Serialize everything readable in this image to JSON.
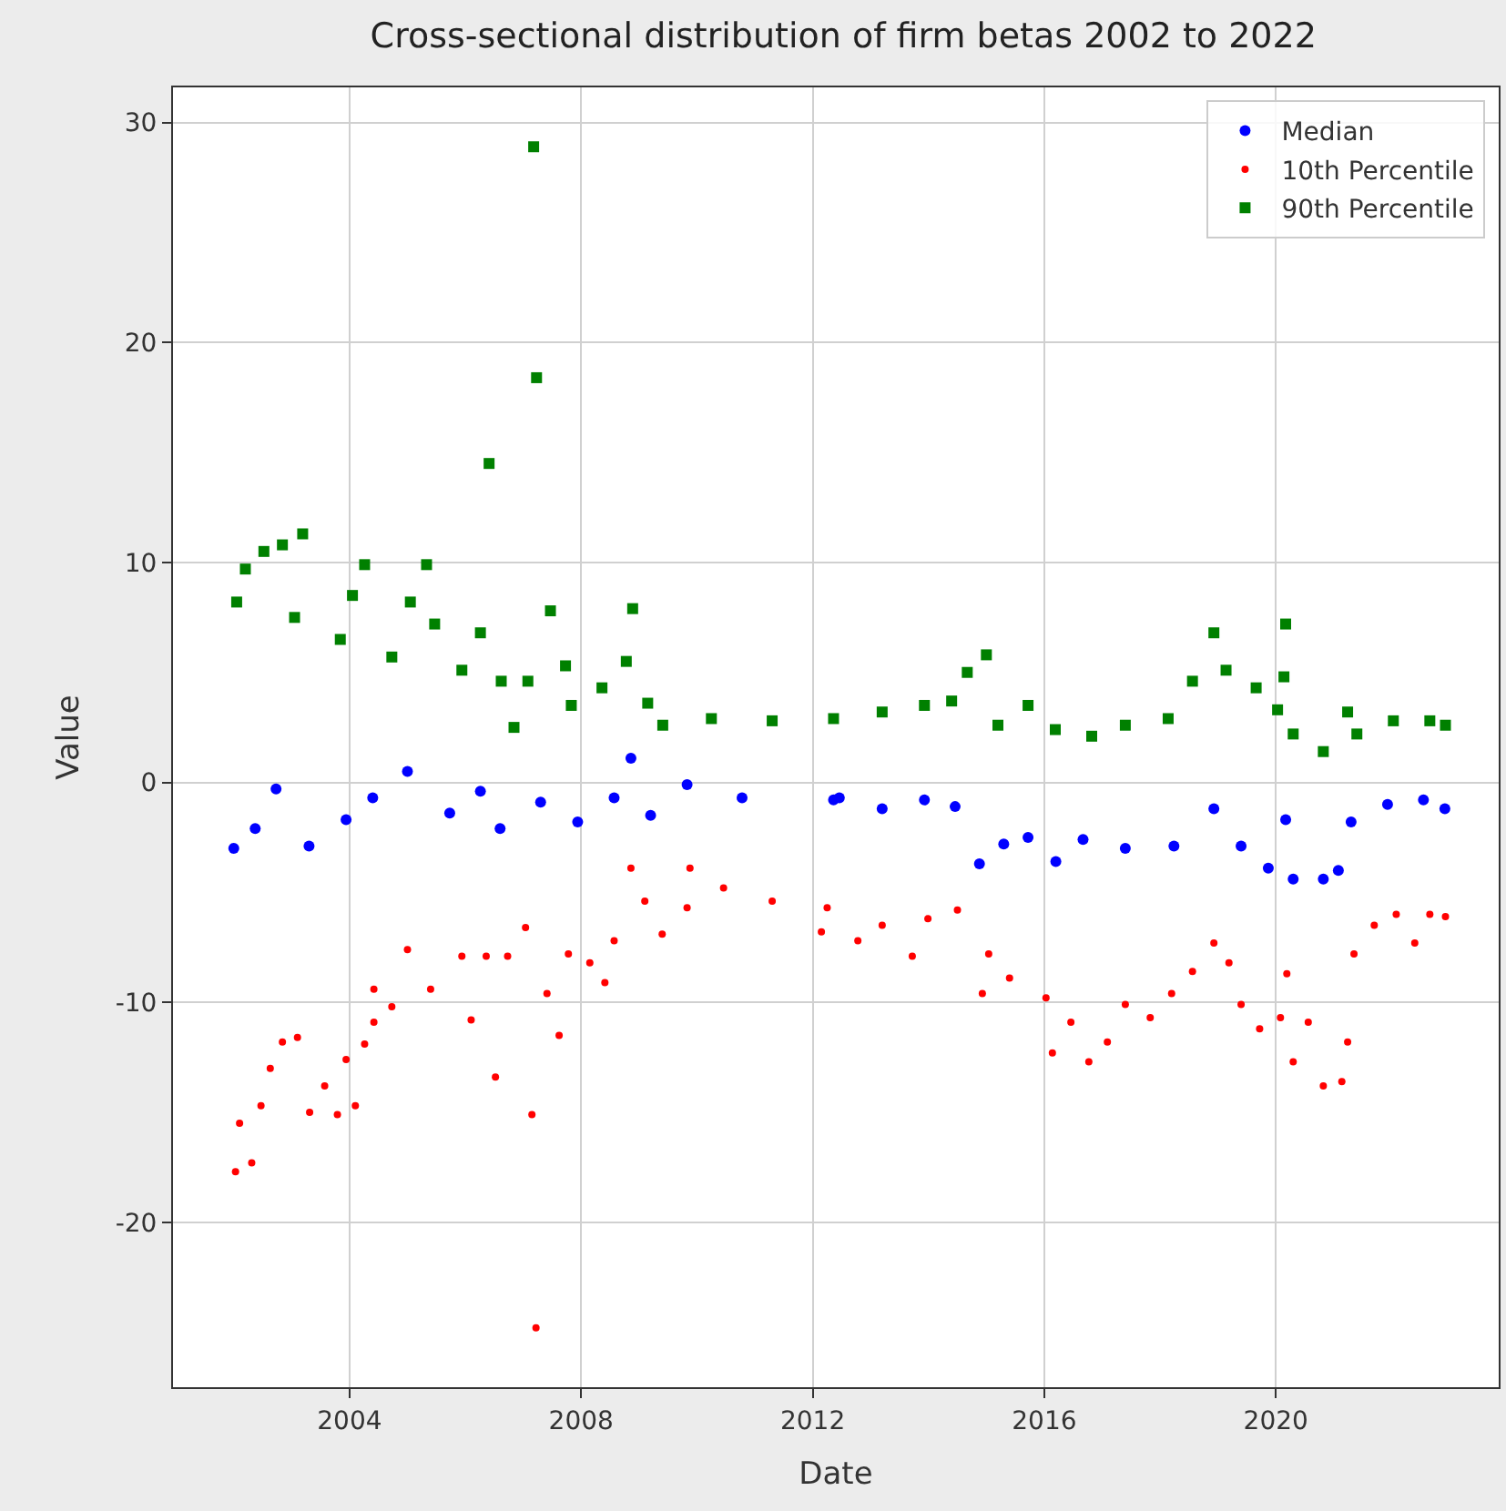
{
  "chart_data": {
    "type": "scatter",
    "title": "Cross-sectional distribution of firm betas 2002 to 2022",
    "xlabel": "Date",
    "ylabel": "Value",
    "xlim": [
      2000.95,
      2023.85
    ],
    "xticks": [
      2004,
      2008,
      2012,
      2016,
      2020
    ],
    "ylim": [
      -27.5,
      31.6
    ],
    "yticks": [
      -20,
      -10,
      0,
      10,
      20,
      30
    ],
    "grid": true,
    "legend": "top right",
    "series": [
      {
        "name": "Median",
        "color": "#0000ff",
        "marker": "circle",
        "x": [
          2002.0,
          2002.37,
          2002.73,
          2003.3,
          2003.94,
          2004.4,
          2005.0,
          2005.73,
          2006.26,
          2006.6,
          2007.3,
          2007.94,
          2008.57,
          2008.86,
          2009.2,
          2009.83,
          2010.78,
          2012.36,
          2012.46,
          2013.2,
          2013.93,
          2014.46,
          2014.88,
          2015.3,
          2015.72,
          2016.2,
          2016.67,
          2017.4,
          2018.24,
          2018.93,
          2019.4,
          2019.87,
          2020.17,
          2020.3,
          2020.82,
          2021.08,
          2021.3,
          2021.93,
          2022.55,
          2022.92
        ],
        "values": [
          -3.0,
          -2.1,
          -0.3,
          -2.9,
          -1.7,
          -0.7,
          0.5,
          -1.4,
          -0.4,
          -2.1,
          -0.9,
          -1.8,
          -0.7,
          1.1,
          -1.5,
          -0.1,
          -0.7,
          -0.8,
          -0.7,
          -1.2,
          -0.8,
          -1.1,
          -3.7,
          -2.8,
          -2.5,
          -3.6,
          -2.6,
          -3.0,
          -2.9,
          -1.2,
          -2.9,
          -3.9,
          -1.7,
          -4.4,
          -4.4,
          -4.0,
          -1.8,
          -1.0,
          -0.8,
          -1.2
        ]
      },
      {
        "name": "10th Percentile",
        "color": "#ff0000",
        "marker": "circle",
        "x": [
          2002.03,
          2002.1,
          2002.31,
          2002.47,
          2002.63,
          2002.84,
          2003.1,
          2003.31,
          2003.57,
          2003.79,
          2003.94,
          2004.1,
          2004.26,
          2004.42,
          2004.42,
          2004.73,
          2005.0,
          2005.4,
          2005.94,
          2006.1,
          2006.36,
          2006.52,
          2006.73,
          2007.04,
          2007.15,
          2007.22,
          2007.41,
          2007.62,
          2007.78,
          2008.15,
          2008.41,
          2008.57,
          2008.86,
          2009.1,
          2009.4,
          2009.83,
          2009.88,
          2010.46,
          2011.3,
          2012.15,
          2012.25,
          2012.78,
          2013.2,
          2013.72,
          2013.99,
          2014.5,
          2014.93,
          2015.04,
          2015.4,
          2016.03,
          2016.14,
          2016.46,
          2016.77,
          2017.09,
          2017.4,
          2017.83,
          2018.2,
          2018.56,
          2018.93,
          2019.19,
          2019.4,
          2019.72,
          2020.08,
          2020.19,
          2020.3,
          2020.56,
          2020.82,
          2021.14,
          2021.24,
          2021.35,
          2021.7,
          2022.08,
          2022.4,
          2022.66,
          2022.93
        ],
        "values": [
          -17.7,
          -15.5,
          -17.3,
          -14.7,
          -13.0,
          -11.8,
          -11.6,
          -15.0,
          -13.8,
          -15.1,
          -12.6,
          -14.7,
          -11.9,
          -10.9,
          -9.4,
          -10.2,
          -7.6,
          -9.4,
          -7.9,
          -10.8,
          -7.9,
          -13.4,
          -7.9,
          -6.6,
          -15.1,
          -24.8,
          -9.6,
          -11.5,
          -7.8,
          -8.2,
          -9.1,
          -7.2,
          -3.9,
          -5.4,
          -6.9,
          -5.7,
          -3.9,
          -4.8,
          -5.4,
          -6.8,
          -5.7,
          -7.2,
          -6.5,
          -7.9,
          -6.2,
          -5.8,
          -9.6,
          -7.8,
          -8.9,
          -9.8,
          -12.3,
          -10.9,
          -12.7,
          -11.8,
          -10.1,
          -10.7,
          -9.6,
          -8.6,
          -7.3,
          -8.2,
          -10.1,
          -11.2,
          -10.7,
          -8.7,
          -12.7,
          -10.9,
          -13.8,
          -13.6,
          -11.8,
          -7.8,
          -6.5,
          -6.0,
          -7.3,
          -6.0,
          -6.1
        ]
      },
      {
        "name": "90th Percentile",
        "color": "#008000",
        "marker": "square",
        "x": [
          2002.05,
          2002.2,
          2002.52,
          2002.84,
          2003.05,
          2003.19,
          2003.84,
          2004.05,
          2004.26,
          2004.73,
          2005.05,
          2005.33,
          2005.47,
          2005.94,
          2006.26,
          2006.41,
          2006.62,
          2006.84,
          2007.08,
          2007.18,
          2007.23,
          2007.47,
          2007.73,
          2007.83,
          2008.36,
          2008.78,
          2008.89,
          2009.15,
          2009.41,
          2010.25,
          2011.3,
          2012.36,
          2013.2,
          2013.93,
          2014.4,
          2014.67,
          2015.0,
          2015.2,
          2015.72,
          2016.19,
          2016.82,
          2017.4,
          2018.14,
          2018.56,
          2018.93,
          2019.14,
          2019.66,
          2020.03,
          2020.14,
          2020.17,
          2020.3,
          2020.82,
          2021.24,
          2021.4,
          2022.03,
          2022.66,
          2022.93
        ],
        "values": [
          8.2,
          9.7,
          10.5,
          10.8,
          7.5,
          11.3,
          6.5,
          8.5,
          9.9,
          5.7,
          8.2,
          9.9,
          7.2,
          5.1,
          6.8,
          14.5,
          4.6,
          2.5,
          4.6,
          28.9,
          18.4,
          7.8,
          5.3,
          3.5,
          4.3,
          5.5,
          7.9,
          3.6,
          2.6,
          2.9,
          2.8,
          2.9,
          3.2,
          3.5,
          3.7,
          5.0,
          5.8,
          2.6,
          3.5,
          2.4,
          2.1,
          2.6,
          2.9,
          4.6,
          6.8,
          5.1,
          4.3,
          3.3,
          4.8,
          7.2,
          2.2,
          1.4,
          3.2,
          2.2,
          2.8,
          2.8,
          2.6
        ]
      }
    ]
  }
}
